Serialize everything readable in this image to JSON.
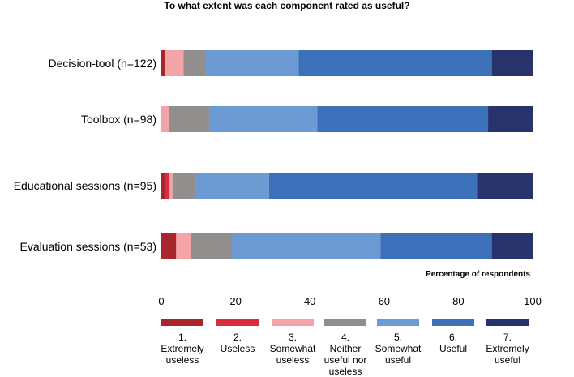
{
  "chart_data": {
    "type": "bar",
    "orientation": "horizontal",
    "stacked": true,
    "title": "To what extent was each component rated as useful?",
    "xlabel": "Percentage of respondents",
    "xlim": [
      0,
      100
    ],
    "xticks": [
      "0",
      "20",
      "40",
      "60",
      "80",
      "100"
    ],
    "categories": [
      "Decision-tool (n=122)",
      "Toolbox (n=98)",
      "Educational sessions (n=95)",
      "Evaluation sessions (n=53)"
    ],
    "series": [
      {
        "name": "1.\nExtremely\nuseless",
        "color": "#a8262b",
        "values": [
          1,
          0,
          1,
          4
        ]
      },
      {
        "name": "2.\nUseless",
        "color": "#d72c3d",
        "values": [
          0,
          0,
          1,
          0
        ]
      },
      {
        "name": "3.\nSomewhat\nuseless",
        "color": "#f4a3a6",
        "values": [
          5,
          2,
          1,
          4
        ]
      },
      {
        "name": "4.\nNeither\nuseful nor\nuseless",
        "color": "#938e8e",
        "values": [
          6,
          11,
          6,
          11
        ]
      },
      {
        "name": "5.\nSomewhat\nuseful",
        "color": "#6b9bd2",
        "values": [
          25,
          29,
          20,
          40
        ]
      },
      {
        "name": "6.\nUseful",
        "color": "#3c70b8",
        "values": [
          52,
          46,
          56,
          30
        ]
      },
      {
        "name": "7.\nExtremely\nuseful",
        "color": "#27336a",
        "values": [
          11,
          12,
          15,
          11
        ]
      }
    ],
    "grid": false,
    "legend_position": "bottom"
  }
}
